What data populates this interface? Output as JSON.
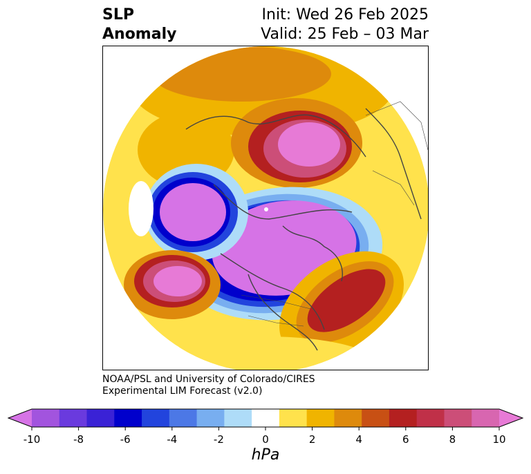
{
  "title": {
    "left_line1": "SLP",
    "left_line2": "Anomaly",
    "right_line1": "Init: Wed 26 Feb 2025",
    "right_line2": "Valid: 25 Feb – 03 Mar"
  },
  "credit": {
    "line1": "NOAA/PSL and University of Colorado/CIRES",
    "line2": "Experimental LIM Forecast (v2.0)"
  },
  "colorbar": {
    "unit": "hPa",
    "ticks": [
      "-10",
      "-8",
      "-6",
      "-4",
      "-2",
      "0",
      "2",
      "4",
      "6",
      "8",
      "10"
    ],
    "colors": [
      "#d673e6",
      "#a254de",
      "#6a3ade",
      "#3a22d6",
      "#0000cc",
      "#2244dd",
      "#4c78e6",
      "#78aef0",
      "#aedcf8",
      "#ffffff",
      "#ffe24c",
      "#f0b400",
      "#de8a0c",
      "#c85014",
      "#b42020",
      "#c03048",
      "#cc4e78",
      "#d866b0",
      "#e77ad6"
    ]
  },
  "map": {
    "colors": {
      "neg_strong": "#d673e6",
      "neg_blue": "#0000cc",
      "neg_mid": "#4c78e6",
      "neg_light": "#aedcf8",
      "pos_light": "#ffe24c",
      "pos_mid": "#f0b400",
      "pos_dark": "#de8a0c",
      "pos_red": "#b42020",
      "pos_pink": "#d866b0",
      "coast": "#444444"
    }
  }
}
